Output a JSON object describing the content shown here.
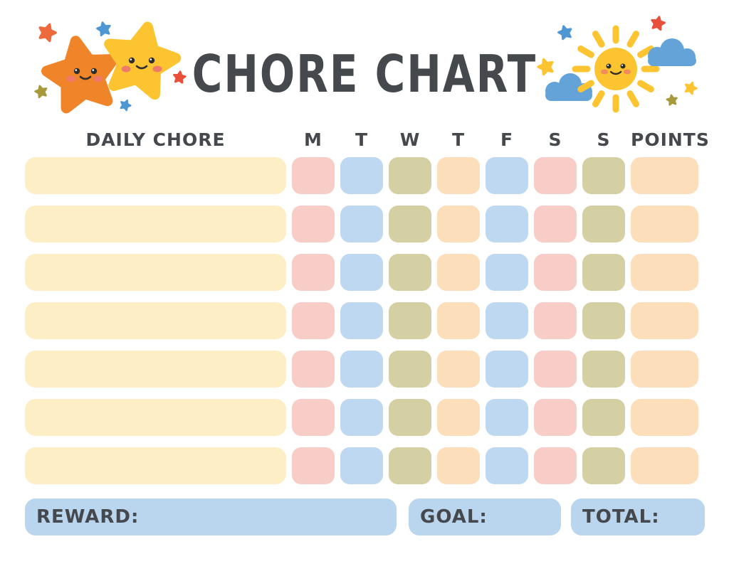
{
  "title": "CHORE CHART",
  "header": {
    "chore_column_label": "DAILY CHORE",
    "day_labels": [
      "M",
      "T",
      "W",
      "T",
      "F",
      "S",
      "S"
    ],
    "points_column_label": "POINTS"
  },
  "grid": {
    "rows": 7,
    "day_color_pattern": [
      "pink",
      "blue",
      "olive",
      "peach",
      "blue",
      "pink",
      "olive"
    ],
    "chore_cell_color": "cream",
    "points_cell_color": "peach"
  },
  "footer": {
    "reward_label": "REWARD:",
    "goal_label": "GOAL:",
    "total_label": "TOTAL:"
  },
  "colors": {
    "text": "#45484d",
    "cream": "#fdeec5",
    "pink": "#f8cdc7",
    "blue": "#bdd8f0",
    "olive": "#d4d0a3",
    "peach": "#fcdfba",
    "footer_box": "#b9d6ee",
    "orange_star": "#f08428",
    "yellow_star": "#fcc431",
    "sun": "#fcc431",
    "cloud": "#64a3d8",
    "small_red_star": "#e8503c",
    "small_blue_star": "#4f97d4",
    "small_olive_star": "#a79a3c",
    "small_orange_star": "#ed6a3d",
    "face": "#2e2e2e",
    "cheek": "#ee7a68"
  },
  "decorations": {
    "left_icons": [
      "orange-star-icon",
      "yellow-star-icon",
      "small-star-icon"
    ],
    "right_icons": [
      "sun-icon",
      "cloud-icon",
      "small-star-icon"
    ]
  }
}
